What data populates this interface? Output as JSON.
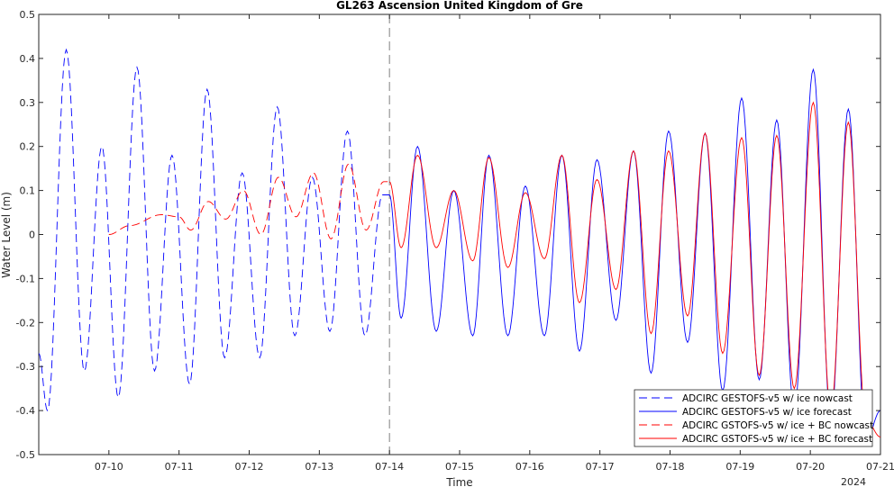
{
  "chart_data": {
    "type": "line",
    "title": "GL263 Ascension United Kingdom of Gre",
    "xlabel": "Time",
    "ylabel": "Water Level (m)",
    "year_label": "2024",
    "ylim": [
      -0.5,
      0.5
    ],
    "yticks": [
      -0.5,
      -0.4,
      -0.3,
      -0.2,
      -0.1,
      0,
      0.1,
      0.2,
      0.3,
      0.4,
      0.5
    ],
    "ytick_labels": [
      "-0.5",
      "-0.4",
      "-0.3",
      "-0.2",
      "-0.1",
      "0",
      "0.1",
      "0.2",
      "0.3",
      "0.4",
      "0.5"
    ],
    "xlim": [
      "2024-07-09 00:00",
      "2024-07-21 00:00"
    ],
    "xticks": [
      "2024-07-10",
      "2024-07-11",
      "2024-07-12",
      "2024-07-13",
      "2024-07-14",
      "2024-07-15",
      "2024-07-16",
      "2024-07-17",
      "2024-07-18",
      "2024-07-19",
      "2024-07-20",
      "2024-07-21"
    ],
    "xtick_labels": [
      "07-10",
      "07-11",
      "07-12",
      "07-13",
      "07-14",
      "07-15",
      "07-16",
      "07-17",
      "07-18",
      "07-19",
      "07-20",
      "07-21"
    ],
    "nowcast_divider": "2024-07-14 00:00",
    "grid": false,
    "legend_position": "bottom-right",
    "series": [
      {
        "name": "ADCIRC GESTOFS-v5 w/ ice nowcast",
        "color": "#0000ff",
        "dash": "dashed",
        "points": [
          [
            "2024-07-09 00:00",
            -0.27
          ],
          [
            "2024-07-09 03:00",
            -0.4
          ],
          [
            "2024-07-09 09:24",
            0.42
          ],
          [
            "2024-07-09 15:36",
            -0.31
          ],
          [
            "2024-07-09 21:36",
            0.2
          ],
          [
            "2024-07-10 03:12",
            -0.37
          ],
          [
            "2024-07-10 09:36",
            0.38
          ],
          [
            "2024-07-10 15:36",
            -0.31
          ],
          [
            "2024-07-10 21:36",
            0.18
          ],
          [
            "2024-07-11 03:36",
            -0.34
          ],
          [
            "2024-07-11 09:36",
            0.33
          ],
          [
            "2024-07-11 15:36",
            -0.28
          ],
          [
            "2024-07-11 21:36",
            0.14
          ],
          [
            "2024-07-12 03:36",
            -0.28
          ],
          [
            "2024-07-12 09:36",
            0.29
          ],
          [
            "2024-07-12 15:36",
            -0.23
          ],
          [
            "2024-07-12 21:36",
            0.13
          ],
          [
            "2024-07-13 03:36",
            -0.22
          ],
          [
            "2024-07-13 09:36",
            0.235
          ],
          [
            "2024-07-13 15:36",
            -0.23
          ],
          [
            "2024-07-13 21:36",
            0.09
          ],
          [
            "2024-07-14 00:00",
            0.09
          ]
        ]
      },
      {
        "name": "ADCIRC GESTOFS-v5 w/ ice forecast",
        "color": "#0000ff",
        "dash": "solid",
        "points": [
          [
            "2024-07-14 00:00",
            0.09
          ],
          [
            "2024-07-14 04:00",
            -0.19
          ],
          [
            "2024-07-14 09:36",
            0.2
          ],
          [
            "2024-07-14 16:00",
            -0.22
          ],
          [
            "2024-07-14 22:00",
            0.1
          ],
          [
            "2024-07-15 04:30",
            -0.23
          ],
          [
            "2024-07-15 10:00",
            0.18
          ],
          [
            "2024-07-15 16:30",
            -0.23
          ],
          [
            "2024-07-15 22:30",
            0.11
          ],
          [
            "2024-07-16 05:00",
            -0.23
          ],
          [
            "2024-07-16 11:00",
            0.18
          ],
          [
            "2024-07-16 17:00",
            -0.265
          ],
          [
            "2024-07-16 23:00",
            0.17
          ],
          [
            "2024-07-17 05:30",
            -0.195
          ],
          [
            "2024-07-17 11:30",
            0.19
          ],
          [
            "2024-07-17 17:30",
            -0.315
          ],
          [
            "2024-07-17 23:30",
            0.235
          ],
          [
            "2024-07-18 06:00",
            -0.245
          ],
          [
            "2024-07-18 12:00",
            0.23
          ],
          [
            "2024-07-18 18:00",
            -0.355
          ],
          [
            "2024-07-19 00:30",
            0.31
          ],
          [
            "2024-07-19 06:30",
            -0.33
          ],
          [
            "2024-07-19 12:30",
            0.26
          ],
          [
            "2024-07-19 18:30",
            -0.4
          ],
          [
            "2024-07-20 01:00",
            0.375
          ],
          [
            "2024-07-20 07:00",
            -0.42
          ],
          [
            "2024-07-20 13:00",
            0.285
          ],
          [
            "2024-07-20 19:00",
            -0.47
          ],
          [
            "2024-07-21 00:00",
            -0.4
          ]
        ]
      },
      {
        "name": "ADCIRC GSTOFS-v5 w/ ice + BC nowcast",
        "color": "#ff0000",
        "dash": "dashed",
        "points": [
          [
            "2024-07-10 00:00",
            0.0
          ],
          [
            "2024-07-10 07:00",
            0.02
          ],
          [
            "2024-07-10 18:00",
            0.045
          ],
          [
            "2024-07-11 00:00",
            0.04
          ],
          [
            "2024-07-11 04:00",
            0.01
          ],
          [
            "2024-07-11 10:00",
            0.075
          ],
          [
            "2024-07-11 16:00",
            0.035
          ],
          [
            "2024-07-11 22:00",
            0.1
          ],
          [
            "2024-07-12 04:00",
            0.0
          ],
          [
            "2024-07-12 10:00",
            0.13
          ],
          [
            "2024-07-12 16:00",
            0.04
          ],
          [
            "2024-07-12 22:00",
            0.14
          ],
          [
            "2024-07-13 04:00",
            -0.01
          ],
          [
            "2024-07-13 10:00",
            0.16
          ],
          [
            "2024-07-13 16:00",
            0.01
          ],
          [
            "2024-07-13 22:00",
            0.12
          ],
          [
            "2024-07-14 00:00",
            0.12
          ]
        ]
      },
      {
        "name": "ADCIRC GSTOFS-v5 w/ ice + BC forecast",
        "color": "#ff0000",
        "dash": "solid",
        "points": [
          [
            "2024-07-14 00:00",
            0.12
          ],
          [
            "2024-07-14 04:00",
            -0.03
          ],
          [
            "2024-07-14 09:36",
            0.18
          ],
          [
            "2024-07-14 16:00",
            -0.03
          ],
          [
            "2024-07-14 22:00",
            0.1
          ],
          [
            "2024-07-15 04:30",
            -0.06
          ],
          [
            "2024-07-15 10:00",
            0.175
          ],
          [
            "2024-07-15 16:30",
            -0.075
          ],
          [
            "2024-07-15 22:30",
            0.095
          ],
          [
            "2024-07-16 05:00",
            -0.055
          ],
          [
            "2024-07-16 11:00",
            0.18
          ],
          [
            "2024-07-16 17:00",
            -0.155
          ],
          [
            "2024-07-16 23:00",
            0.125
          ],
          [
            "2024-07-17 05:30",
            -0.125
          ],
          [
            "2024-07-17 11:30",
            0.19
          ],
          [
            "2024-07-17 17:30",
            -0.225
          ],
          [
            "2024-07-17 23:30",
            0.19
          ],
          [
            "2024-07-18 06:00",
            -0.185
          ],
          [
            "2024-07-18 12:00",
            0.23
          ],
          [
            "2024-07-18 18:00",
            -0.27
          ],
          [
            "2024-07-19 00:30",
            0.22
          ],
          [
            "2024-07-19 06:30",
            -0.32
          ],
          [
            "2024-07-19 12:30",
            0.225
          ],
          [
            "2024-07-19 18:30",
            -0.35
          ],
          [
            "2024-07-20 01:00",
            0.3
          ],
          [
            "2024-07-20 07:00",
            -0.4
          ],
          [
            "2024-07-20 13:00",
            0.255
          ],
          [
            "2024-07-20 19:00",
            -0.42
          ],
          [
            "2024-07-21 00:00",
            -0.46
          ]
        ]
      }
    ]
  }
}
